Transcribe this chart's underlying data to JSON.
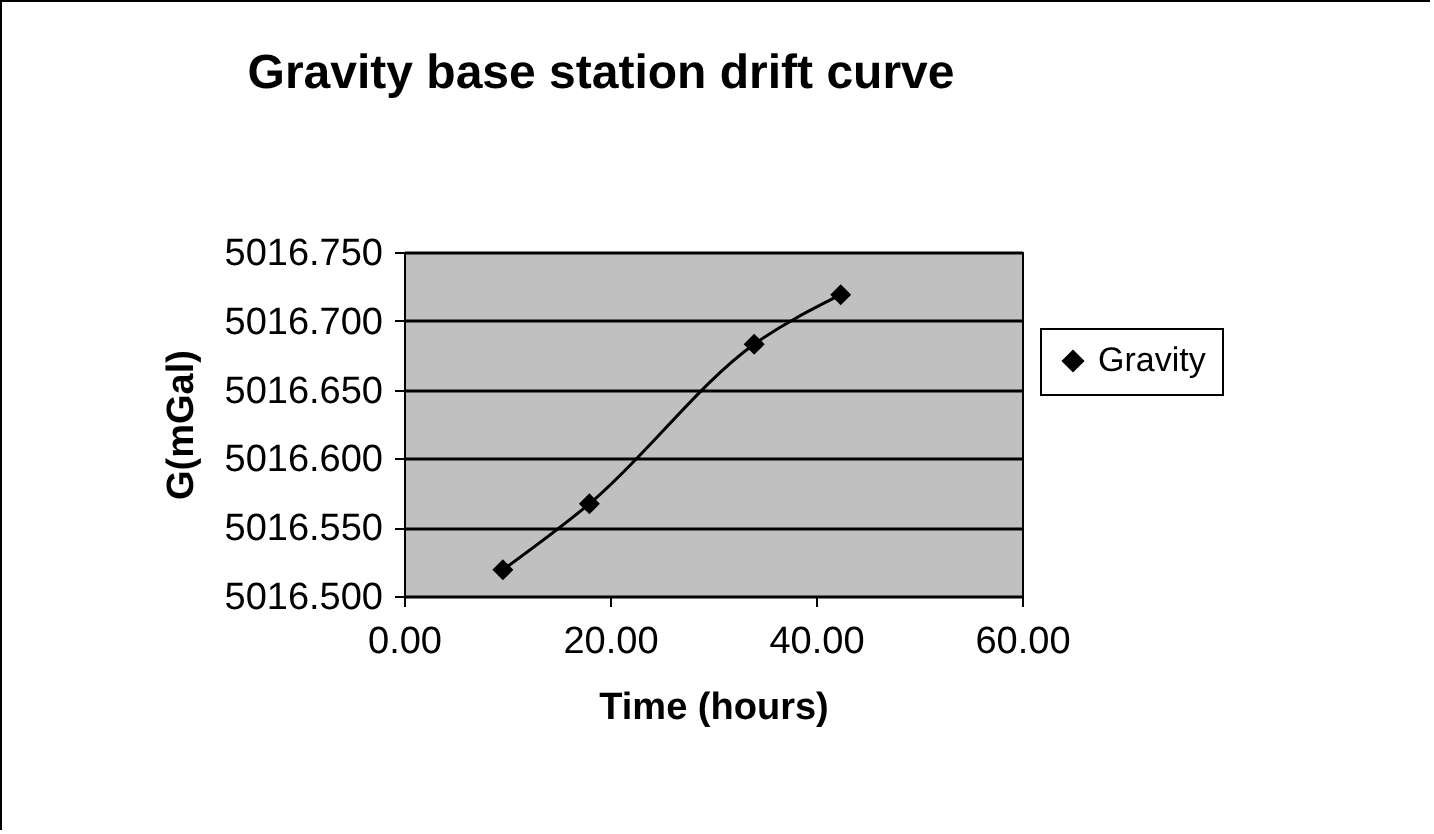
{
  "chart_data": {
    "type": "line",
    "title": "Gravity base station drift curve",
    "xlabel": "Time  (hours)",
    "ylabel": "G(mGal)",
    "series": [
      {
        "name": "Gravity",
        "color": "#000000",
        "x": [
          9.6,
          18,
          34,
          42.4
        ],
        "values": [
          5016.519,
          5016.567,
          5016.683,
          5016.719
        ]
      }
    ],
    "xlim": [
      0,
      60
    ],
    "xticks": [
      {
        "value": 0,
        "label": "0.00"
      },
      {
        "value": 20,
        "label": "20.00"
      },
      {
        "value": 40,
        "label": "40.00"
      },
      {
        "value": 60,
        "label": "60.00"
      }
    ],
    "ylim": [
      5016.5,
      5016.75
    ],
    "yticks": [
      {
        "value": 5016.5,
        "label": "5016.500"
      },
      {
        "value": 5016.55,
        "label": "5016.550"
      },
      {
        "value": 5016.6,
        "label": "5016.600"
      },
      {
        "value": 5016.65,
        "label": "5016.650"
      },
      {
        "value": 5016.7,
        "label": "5016.700"
      },
      {
        "value": 5016.75,
        "label": "5016.750"
      }
    ],
    "grid": "y",
    "legend": "right",
    "marker": "diamond",
    "line_style": "solid"
  }
}
